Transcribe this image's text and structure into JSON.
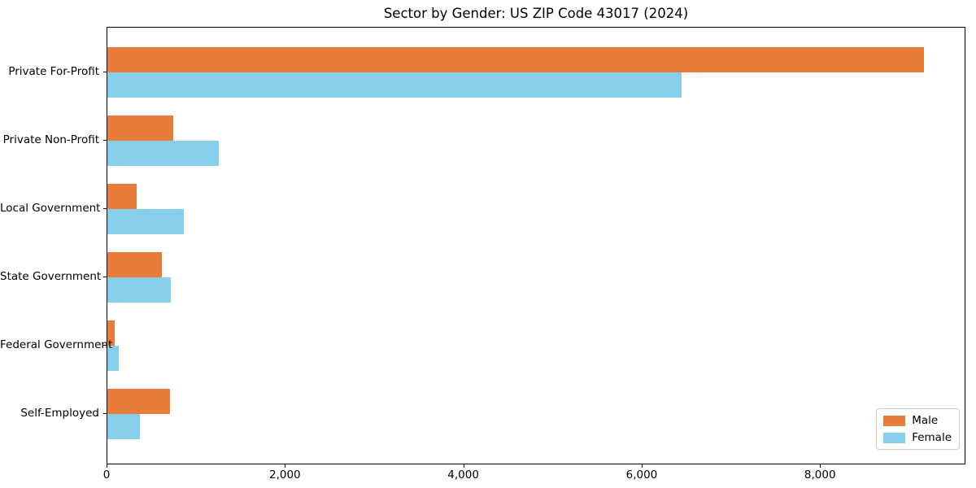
{
  "chart_data": {
    "type": "bar",
    "orientation": "horizontal",
    "title": "Sector by Gender: US ZIP Code 43017 (2024)",
    "categories": [
      "Private For-Profit",
      "Private Non-Profit",
      "Local Government",
      "State Government",
      "Federal Government",
      "Self-Employed"
    ],
    "series": [
      {
        "name": "Male",
        "color": "#e87d3b",
        "values": [
          9170,
          740,
          330,
          610,
          80,
          700
        ]
      },
      {
        "name": "Female",
        "color": "#87ceeb",
        "values": [
          6450,
          1250,
          860,
          710,
          130,
          370
        ]
      }
    ],
    "xlabel": "",
    "ylabel": "",
    "xlim": [
      0,
      9630
    ],
    "xticks": [
      {
        "value": 0,
        "label": "0"
      },
      {
        "value": 2000,
        "label": "2,000"
      },
      {
        "value": 4000,
        "label": "4,000"
      },
      {
        "value": 6000,
        "label": "6,000"
      },
      {
        "value": 8000,
        "label": "8,000"
      }
    ],
    "grid": false,
    "legend": {
      "position": "lower right"
    }
  }
}
